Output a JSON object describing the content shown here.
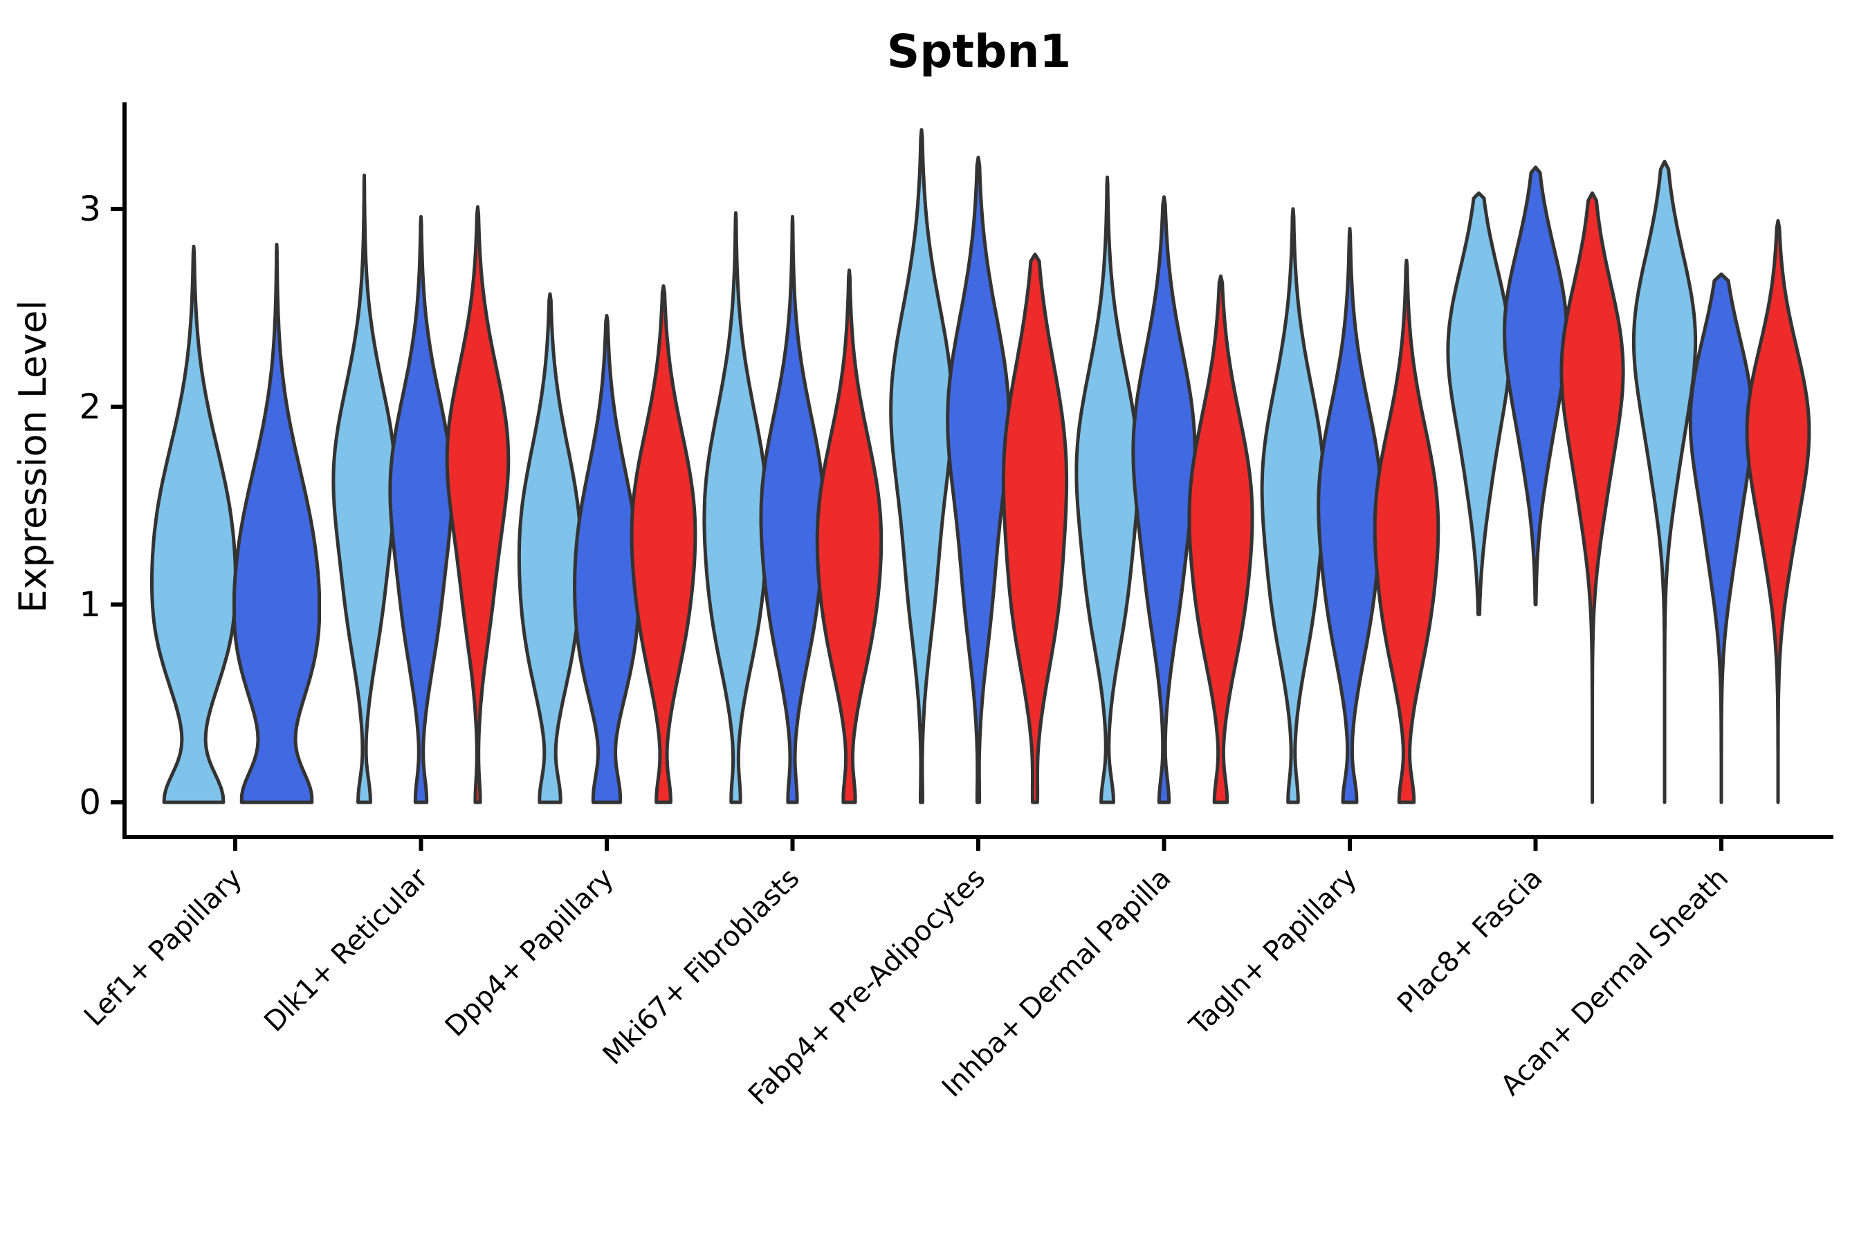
{
  "title": "Sptbn1",
  "axes": {
    "ylabel": "Expression Level",
    "yticks": [
      0,
      1,
      2,
      3
    ]
  },
  "chart_data": {
    "type": "violin",
    "title": "Sptbn1",
    "xlabel": "",
    "ylabel": "Expression Level",
    "ylim": [
      -0.18,
      3.55
    ],
    "yticks": [
      0,
      1,
      2,
      3
    ],
    "grid": false,
    "legend": "none",
    "palette": {
      "light_blue": "#7FC3EA",
      "blue": "#4169E1",
      "red": "#EE2B2B",
      "outline": "#333333",
      "axis": "#000000"
    },
    "groups": [
      {
        "label": "Lef1+ Papillary",
        "violins": [
          {
            "series": "light_blue",
            "min": 0,
            "max": 2.81,
            "density": [
              [
                1.3,
                0.5,
                0.95
              ],
              [
                0.78,
                0.28,
                0.32
              ],
              [
                0,
                0.15,
                0.7
              ]
            ]
          },
          {
            "series": "blue",
            "min": 0,
            "max": 2.82,
            "density": [
              [
                1.2,
                0.5,
                0.92
              ],
              [
                0.7,
                0.3,
                0.36
              ],
              [
                0,
                0.16,
                0.8
              ]
            ]
          }
        ]
      },
      {
        "label": "Dlk1+ Reticular",
        "violins": [
          {
            "series": "light_blue",
            "min": 0,
            "max": 3.17,
            "density": [
              [
                1.65,
                0.45,
                1.0
              ],
              [
                0.9,
                0.3,
                0.3
              ],
              [
                0,
                0.12,
                0.2
              ]
            ]
          },
          {
            "series": "blue",
            "min": 0,
            "max": 2.96,
            "density": [
              [
                1.6,
                0.45,
                1.0
              ],
              [
                0.85,
                0.3,
                0.3
              ],
              [
                0,
                0.12,
                0.18
              ]
            ]
          },
          {
            "series": "red",
            "min": 0,
            "max": 3.01,
            "density": [
              [
                1.75,
                0.45,
                1.0
              ],
              [
                0.95,
                0.3,
                0.25
              ],
              [
                0,
                0.11,
                0.08
              ]
            ]
          }
        ]
      },
      {
        "label": "Dpp4+ Papillary",
        "violins": [
          {
            "series": "light_blue",
            "min": 0,
            "max": 2.57,
            "density": [
              [
                1.35,
                0.45,
                0.95
              ],
              [
                0.75,
                0.3,
                0.35
              ],
              [
                0,
                0.13,
                0.32
              ]
            ]
          },
          {
            "series": "blue",
            "min": 0,
            "max": 2.46,
            "density": [
              [
                1.25,
                0.45,
                0.95
              ],
              [
                0.7,
                0.3,
                0.38
              ],
              [
                0,
                0.14,
                0.4
              ]
            ]
          },
          {
            "series": "red",
            "min": 0,
            "max": 2.61,
            "density": [
              [
                1.42,
                0.45,
                1.0
              ],
              [
                0.8,
                0.3,
                0.3
              ],
              [
                0,
                0.12,
                0.22
              ]
            ]
          }
        ]
      },
      {
        "label": "Mki67+ Fibroblasts",
        "violins": [
          {
            "series": "light_blue",
            "min": 0,
            "max": 2.98,
            "density": [
              [
                1.5,
                0.48,
                1.0
              ],
              [
                0.85,
                0.3,
                0.3
              ],
              [
                0,
                0.12,
                0.14
              ]
            ]
          },
          {
            "series": "blue",
            "min": 0,
            "max": 2.96,
            "density": [
              [
                1.5,
                0.46,
                1.0
              ],
              [
                0.85,
                0.3,
                0.3
              ],
              [
                0,
                0.12,
                0.14
              ]
            ]
          },
          {
            "series": "red",
            "min": 0,
            "max": 2.69,
            "density": [
              [
                1.4,
                0.45,
                1.0
              ],
              [
                0.8,
                0.3,
                0.3
              ],
              [
                0,
                0.12,
                0.18
              ]
            ]
          }
        ]
      },
      {
        "label": "Fabp4+ Pre-Adipocytes",
        "violins": [
          {
            "series": "light_blue",
            "min": 0,
            "max": 3.4,
            "density": [
              [
                2.0,
                0.5,
                1.0
              ],
              [
                1.05,
                0.35,
                0.3
              ],
              [
                0,
                0.11,
                0.03
              ]
            ]
          },
          {
            "series": "blue",
            "min": 0,
            "max": 3.26,
            "density": [
              [
                1.95,
                0.5,
                1.0
              ],
              [
                1.0,
                0.35,
                0.3
              ],
              [
                0,
                0.11,
                0.03
              ]
            ]
          },
          {
            "series": "red",
            "min": 0,
            "max": 2.77,
            "density": [
              [
                1.7,
                0.52,
                1.0
              ],
              [
                0.9,
                0.35,
                0.4
              ],
              [
                0,
                0.12,
                0.06
              ]
            ]
          }
        ]
      },
      {
        "label": "Inhba+ Dermal Papilla",
        "violins": [
          {
            "series": "light_blue",
            "min": 0,
            "max": 3.16,
            "density": [
              [
                1.7,
                0.48,
                1.0
              ],
              [
                0.95,
                0.3,
                0.3
              ],
              [
                0,
                0.12,
                0.2
              ]
            ]
          },
          {
            "series": "blue",
            "min": 0,
            "max": 3.06,
            "density": [
              [
                1.8,
                0.48,
                1.0
              ],
              [
                1.0,
                0.32,
                0.28
              ],
              [
                0,
                0.12,
                0.16
              ]
            ]
          },
          {
            "series": "red",
            "min": 0,
            "max": 2.66,
            "density": [
              [
                1.5,
                0.46,
                1.0
              ],
              [
                0.85,
                0.3,
                0.3
              ],
              [
                0,
                0.12,
                0.2
              ]
            ]
          }
        ]
      },
      {
        "label": "Tagln+ Papillary",
        "violins": [
          {
            "series": "light_blue",
            "min": 0,
            "max": 3.0,
            "density": [
              [
                1.62,
                0.48,
                1.0
              ],
              [
                0.9,
                0.3,
                0.3
              ],
              [
                0,
                0.12,
                0.16
              ]
            ]
          },
          {
            "series": "blue",
            "min": 0,
            "max": 2.9,
            "density": [
              [
                1.55,
                0.46,
                1.0
              ],
              [
                0.88,
                0.3,
                0.3
              ],
              [
                0,
                0.12,
                0.22
              ]
            ]
          },
          {
            "series": "red",
            "min": 0,
            "max": 2.74,
            "density": [
              [
                1.45,
                0.45,
                1.0
              ],
              [
                0.82,
                0.3,
                0.3
              ],
              [
                0,
                0.12,
                0.23
              ]
            ]
          }
        ]
      },
      {
        "label": "Plac8+ Fascia",
        "violins": [
          {
            "series": "light_blue",
            "min": 0.95,
            "max": 3.08,
            "density": [
              [
                2.3,
                0.4,
                1.0
              ],
              [
                1.6,
                0.3,
                0.2
              ]
            ]
          },
          {
            "series": "blue",
            "min": 1.0,
            "max": 3.21,
            "density": [
              [
                2.4,
                0.4,
                1.0
              ],
              [
                1.75,
                0.3,
                0.2
              ]
            ]
          },
          {
            "series": "red",
            "min": 0,
            "max": 3.08,
            "density": [
              [
                2.2,
                0.42,
                1.0
              ],
              [
                1.5,
                0.3,
                0.2
              ]
            ]
          }
        ]
      },
      {
        "label": "Acan+ Dermal Sheath",
        "violins": [
          {
            "series": "light_blue",
            "min": 0,
            "max": 3.24,
            "density": [
              [
                2.35,
                0.42,
                1.0
              ],
              [
                1.65,
                0.3,
                0.2
              ]
            ]
          },
          {
            "series": "blue",
            "min": 0,
            "max": 2.67,
            "density": [
              [
                1.95,
                0.4,
                1.0
              ],
              [
                1.25,
                0.3,
                0.25
              ]
            ]
          },
          {
            "series": "red",
            "min": 0,
            "max": 2.94,
            "density": [
              [
                1.9,
                0.4,
                1.0
              ],
              [
                1.25,
                0.3,
                0.2
              ]
            ]
          }
        ]
      }
    ]
  }
}
